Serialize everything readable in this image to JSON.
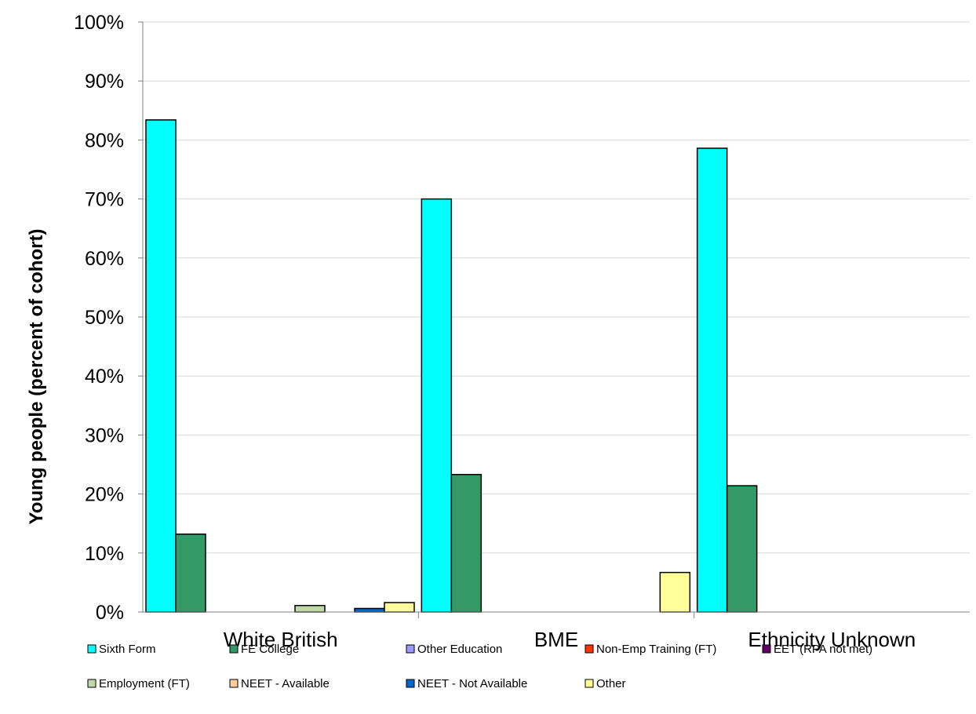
{
  "chart_data": {
    "type": "bar",
    "title": "",
    "xlabel": "",
    "ylabel": "Young people (percent of cohort)",
    "ylim": [
      0,
      100
    ],
    "y_ticks": [
      "0%",
      "10%",
      "20%",
      "30%",
      "40%",
      "50%",
      "60%",
      "70%",
      "80%",
      "90%",
      "100%"
    ],
    "grid": true,
    "legend_position": "bottom",
    "categories": [
      "White British",
      "BME",
      "Ethnicity Unknown"
    ],
    "series": [
      {
        "name": "Sixth Form",
        "color": "#00FFFF",
        "values": [
          83.4,
          70.0,
          78.6
        ]
      },
      {
        "name": "FE College",
        "color": "#339966",
        "values": [
          13.2,
          23.3,
          21.4
        ]
      },
      {
        "name": "Other Education",
        "color": "#9999FF",
        "values": [
          0,
          0,
          0
        ]
      },
      {
        "name": "Non-Emp Training (FT)",
        "color": "#FF3300",
        "values": [
          0,
          0,
          0
        ]
      },
      {
        "name": "EET (RPA not met)",
        "color": "#660066",
        "values": [
          0,
          0,
          0
        ]
      },
      {
        "name": "Employment (FT)",
        "color": "#C0D8A8",
        "values": [
          1.1,
          0,
          0
        ]
      },
      {
        "name": "NEET - Available",
        "color": "#FFCC99",
        "values": [
          0,
          0,
          0
        ]
      },
      {
        "name": "NEET - Not Available",
        "color": "#0066CC",
        "values": [
          0.6,
          0,
          0
        ]
      },
      {
        "name": "Other",
        "color": "#FFFF99",
        "values": [
          1.6,
          6.7,
          0
        ]
      }
    ]
  }
}
